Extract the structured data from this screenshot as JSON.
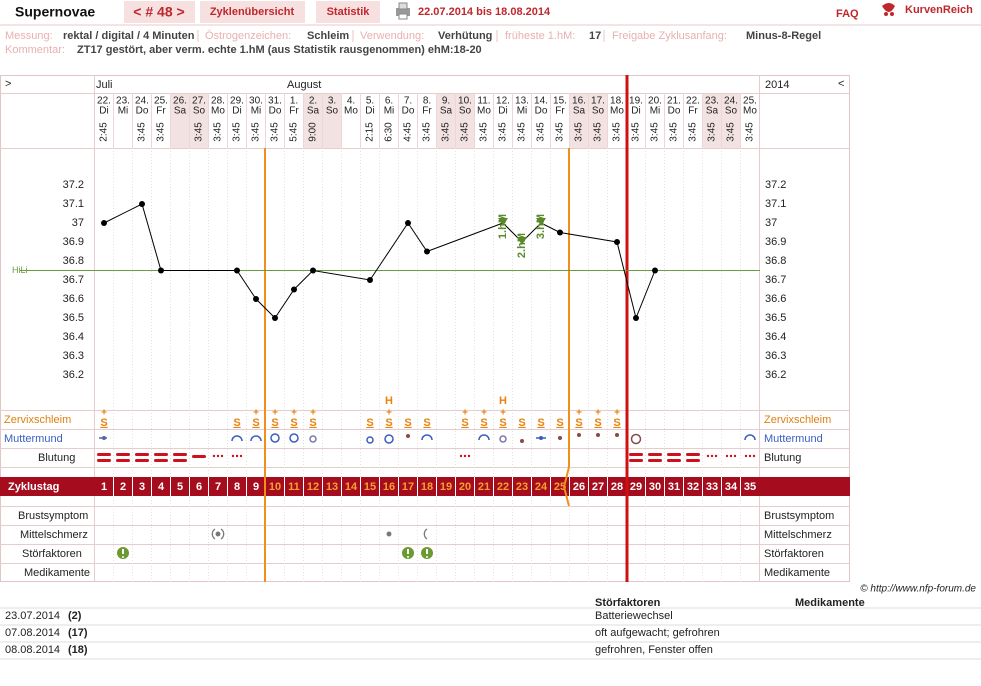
{
  "header": {
    "title": "Supernovae",
    "cycle_nav": "< # 48 >",
    "tabs": [
      "Zyklenübersicht",
      "Statistik"
    ],
    "date_range": "22.07.2014 bis 18.08.2014",
    "faq": "FAQ",
    "brand": "KurvenReich"
  },
  "info": {
    "fields": [
      {
        "label": "Messung:",
        "value": "rektal / digital / 4 Minuten"
      },
      {
        "label": "Östrogenzeichen:",
        "value": "Schleim"
      },
      {
        "label": "Verwendung:",
        "value": "Verhütung"
      },
      {
        "label": "früheste 1.hM:",
        "value": "17"
      },
      {
        "label": "Freigabe Zyklusanfang:",
        "value": "Minus-8-Regel"
      }
    ],
    "comment_label": "Kommentar:",
    "comment": "ZT17 gestört, aber verm. echte 1.hM (aus Statistik rausgenommen) ehM:18-20"
  },
  "chart_data": {
    "type": "line",
    "nav_left": ">",
    "nav_right": "<",
    "months": [
      "Juli",
      "August"
    ],
    "year": "2014",
    "dates": [
      "22.",
      "23.",
      "24.",
      "25.",
      "26.",
      "27.",
      "28.",
      "29.",
      "30.",
      "31.",
      "1.",
      "2.",
      "3.",
      "4.",
      "5.",
      "6.",
      "7.",
      "8.",
      "9.",
      "10.",
      "11.",
      "12.",
      "13.",
      "14.",
      "15.",
      "16.",
      "17.",
      "18.",
      "19.",
      "20.",
      "21.",
      "22.",
      "23.",
      "24.",
      "25."
    ],
    "weekdays": [
      "Di",
      "Mi",
      "Do",
      "Fr",
      "Sa",
      "So",
      "Mo",
      "Di",
      "Mi",
      "Do",
      "Fr",
      "Sa",
      "So",
      "Mo",
      "Di",
      "Mi",
      "Do",
      "Fr",
      "Sa",
      "So",
      "Mo",
      "Di",
      "Mi",
      "Do",
      "Fr",
      "Sa",
      "So",
      "Mo",
      "Di",
      "Mi",
      "Do",
      "Fr",
      "Sa",
      "So",
      "Mo"
    ],
    "times": [
      "2:45",
      null,
      "3:45",
      "3:45",
      null,
      "3:45",
      "3:45",
      "3:45",
      "3:45",
      "3:45",
      "5:45",
      "9:00",
      null,
      null,
      "2:15",
      "6:30",
      "4:45",
      "3:45",
      "3:45",
      "3:45",
      "3:45",
      "3:45",
      "3:45",
      "3:45",
      "3:45",
      "3:45",
      "3:45",
      "3:45",
      "3:45",
      "3:45",
      "3:45",
      "3:45",
      "3:45",
      "3:45",
      "3:45"
    ],
    "cycle_days": [
      1,
      2,
      3,
      4,
      5,
      6,
      7,
      8,
      9,
      10,
      11,
      12,
      13,
      14,
      15,
      16,
      17,
      18,
      19,
      20,
      21,
      22,
      23,
      24,
      25,
      26,
      27,
      28,
      29,
      30,
      31,
      32,
      33,
      34,
      35
    ],
    "x": [
      1,
      3,
      4,
      8,
      9,
      10,
      11,
      12,
      15,
      17,
      18,
      22,
      23,
      24,
      25,
      28,
      29,
      30
    ],
    "values": [
      37,
      37.1,
      36.75,
      36.75,
      36.6,
      36.5,
      36.65,
      36.75,
      36.7,
      37,
      36.85,
      37,
      36.9,
      37,
      36.95,
      36.9,
      36.5,
      36.75
    ],
    "color": "#000000",
    "ylim": [
      36.1,
      37.3
    ],
    "yticks": [
      36.2,
      36.3,
      36.4,
      36.5,
      36.6,
      36.7,
      36.8,
      36.9,
      37,
      37.1,
      37.2
    ],
    "coverline": {
      "label": "HiLi",
      "value": 36.75,
      "color": "#6a9a40"
    },
    "annotations": [
      {
        "x": 22,
        "text": "1.hM"
      },
      {
        "x": 23,
        "text": "2.hM"
      },
      {
        "x": 24,
        "text": "3.hM"
      }
    ],
    "annotation_color": "#5a8a2a",
    "row_labels": {
      "zervix": "Zervixschleim",
      "muttermund": "Muttermund",
      "blutung": "Blutung",
      "zyklustag": "Zyklustag",
      "brust": "Brustsymptom",
      "mittelschmerz": "Mittelschmerz",
      "stoer": "Störfaktoren",
      "medikamente": "Medikamente"
    },
    "zervixschleim": [
      {
        "x": 1,
        "text": "S",
        "plus": "+"
      },
      {
        "x": 8,
        "text": "S"
      },
      {
        "x": 9,
        "text": "S",
        "plus": "+"
      },
      {
        "x": 10,
        "text": "S",
        "plus": "+"
      },
      {
        "x": 11,
        "text": "S",
        "plus": "+"
      },
      {
        "x": 12,
        "text": "S",
        "plus": "+"
      },
      {
        "x": 15,
        "text": "S"
      },
      {
        "x": 16,
        "text": "S",
        "plus": "+",
        "peak": "H"
      },
      {
        "x": 17,
        "text": "S"
      },
      {
        "x": 18,
        "text": "S"
      },
      {
        "x": 20,
        "text": "S",
        "plus": "+"
      },
      {
        "x": 21,
        "text": "S",
        "plus": "+"
      },
      {
        "x": 22,
        "text": "S",
        "plus": "+",
        "peak": "H"
      },
      {
        "x": 23,
        "text": "S"
      },
      {
        "x": 24,
        "text": "S"
      },
      {
        "x": 25,
        "text": "S"
      },
      {
        "x": 26,
        "text": "S",
        "plus": "+"
      },
      {
        "x": 27,
        "text": "S",
        "plus": "+"
      },
      {
        "x": 28,
        "text": "S",
        "plus": "+"
      }
    ]
  },
  "notes": {
    "copyright": "© http://www.nfp-forum.de",
    "headers": [
      "Störfaktoren",
      "Medikamente"
    ],
    "rows": [
      [
        "23.07.2014",
        "(2)",
        "Batteriewechsel"
      ],
      [
        "07.08.2014",
        "(17)",
        "oft aufgewacht; gefrohren"
      ],
      [
        "08.08.2014",
        "(18)",
        "gefrohren, Fenster offen"
      ]
    ]
  }
}
